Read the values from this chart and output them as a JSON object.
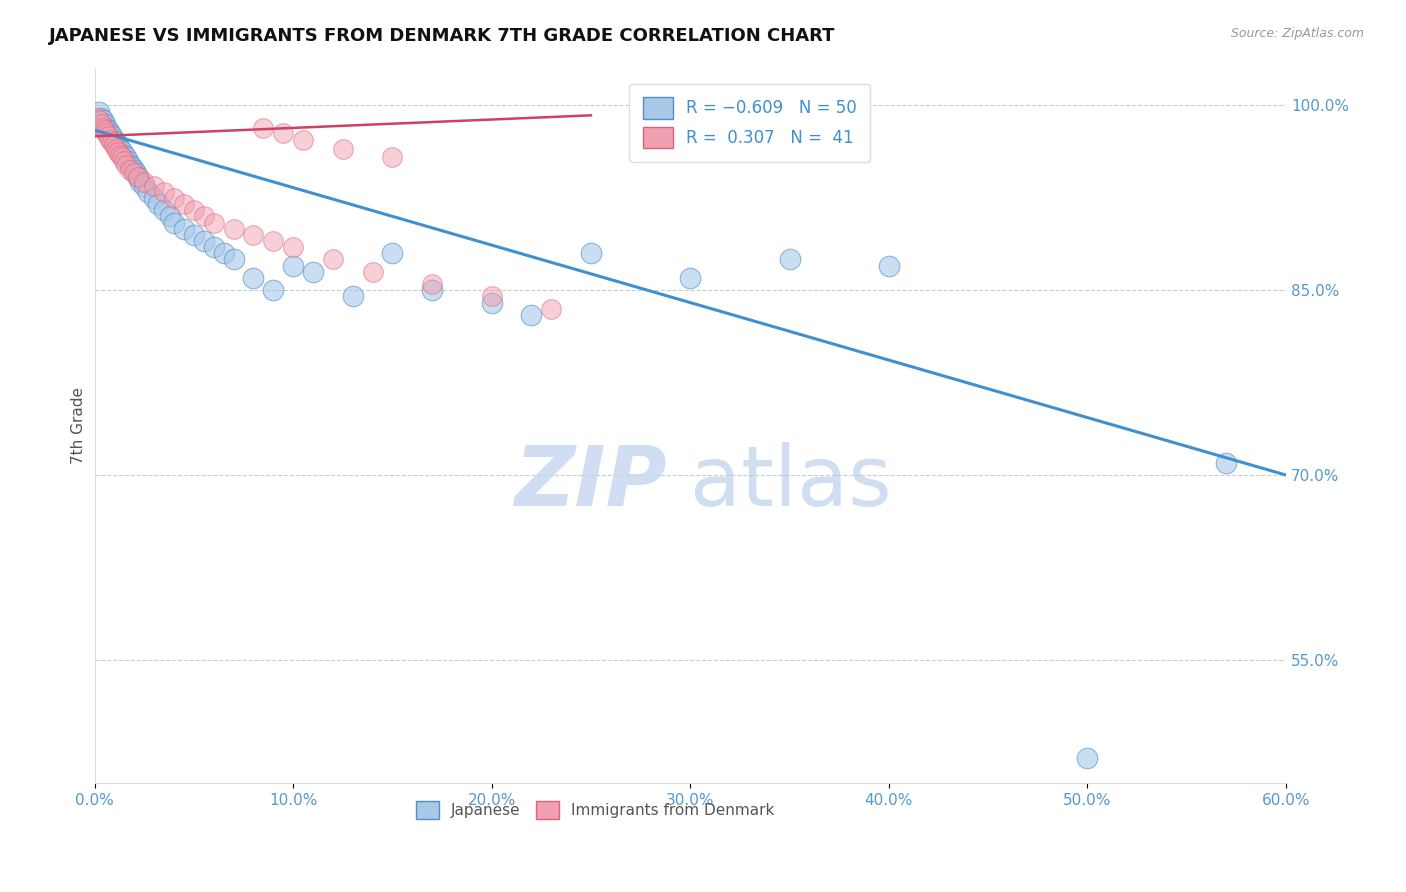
{
  "title": "JAPANESE VS IMMIGRANTS FROM DENMARK 7TH GRADE CORRELATION CHART",
  "source_text": "Source: ZipAtlas.com",
  "ylabel": "7th Grade",
  "xlabel": "",
  "xlim": [
    0.0,
    60.0
  ],
  "ylim": [
    45.0,
    103.0
  ],
  "xticks": [
    0.0,
    10.0,
    20.0,
    30.0,
    40.0,
    50.0,
    60.0
  ],
  "xtick_labels": [
    "0.0%",
    "10.0%",
    "20.0%",
    "30.0%",
    "40.0%",
    "50.0%",
    "60.0%"
  ],
  "ytick_positions": [
    55.0,
    70.0,
    85.0,
    100.0
  ],
  "ytick_labels": [
    "55.0%",
    "70.0%",
    "85.0%",
    "100.0%"
  ],
  "grid_yticks": [
    55.0,
    70.0,
    85.0,
    100.0
  ],
  "legend_labels": [
    "Japanese",
    "Immigrants from Denmark"
  ],
  "blue_color": "#a8c8e8",
  "pink_color": "#f0a0b0",
  "blue_edge_color": "#5090c8",
  "pink_edge_color": "#e06080",
  "blue_line_color": "#4090d0",
  "pink_line_color": "#d04060",
  "tick_color": "#5599cc",
  "watermark_zip_color": "#c8d8f0",
  "watermark_atlas_color": "#b0c8e8",
  "japanese_x": [
    0.2,
    0.3,
    0.4,
    0.5,
    0.6,
    0.7,
    0.8,
    0.9,
    1.0,
    1.1,
    1.2,
    1.3,
    1.4,
    1.5,
    1.6,
    1.7,
    1.8,
    1.9,
    2.0,
    2.1,
    2.2,
    2.3,
    2.5,
    2.7,
    3.0,
    3.2,
    3.5,
    3.8,
    4.0,
    4.5,
    5.0,
    5.5,
    6.0,
    6.5,
    7.0,
    8.0,
    9.0,
    10.0,
    11.0,
    13.0,
    15.0,
    17.0,
    20.0,
    22.0,
    25.0,
    30.0,
    35.0,
    40.0,
    50.0,
    57.0
  ],
  "japanese_y": [
    99.5,
    99.0,
    98.8,
    98.5,
    98.2,
    98.0,
    97.8,
    97.5,
    97.2,
    97.0,
    96.8,
    96.5,
    96.3,
    96.0,
    95.8,
    95.5,
    95.2,
    95.0,
    94.8,
    94.5,
    94.2,
    93.8,
    93.5,
    93.0,
    92.5,
    92.0,
    91.5,
    91.0,
    90.5,
    90.0,
    89.5,
    89.0,
    88.5,
    88.0,
    87.5,
    86.0,
    85.0,
    87.0,
    86.5,
    84.5,
    88.0,
    85.0,
    84.0,
    83.0,
    88.0,
    86.0,
    87.5,
    87.0,
    47.0,
    71.0
  ],
  "denmark_x": [
    0.1,
    0.2,
    0.3,
    0.4,
    0.5,
    0.6,
    0.7,
    0.8,
    0.9,
    1.0,
    1.1,
    1.2,
    1.3,
    1.4,
    1.5,
    1.6,
    1.8,
    2.0,
    2.2,
    2.5,
    3.0,
    3.5,
    4.0,
    4.5,
    5.0,
    5.5,
    6.0,
    7.0,
    8.0,
    9.0,
    10.0,
    12.0,
    14.0,
    17.0,
    20.0,
    23.0,
    8.5,
    9.5,
    10.5,
    12.5,
    15.0
  ],
  "denmark_y": [
    99.0,
    98.8,
    98.5,
    98.2,
    98.0,
    97.8,
    97.5,
    97.2,
    97.0,
    96.8,
    96.5,
    96.2,
    96.0,
    95.8,
    95.5,
    95.2,
    94.8,
    94.5,
    94.2,
    93.8,
    93.5,
    93.0,
    92.5,
    92.0,
    91.5,
    91.0,
    90.5,
    90.0,
    89.5,
    89.0,
    88.5,
    87.5,
    86.5,
    85.5,
    84.5,
    83.5,
    98.2,
    97.8,
    97.2,
    96.5,
    95.8
  ]
}
